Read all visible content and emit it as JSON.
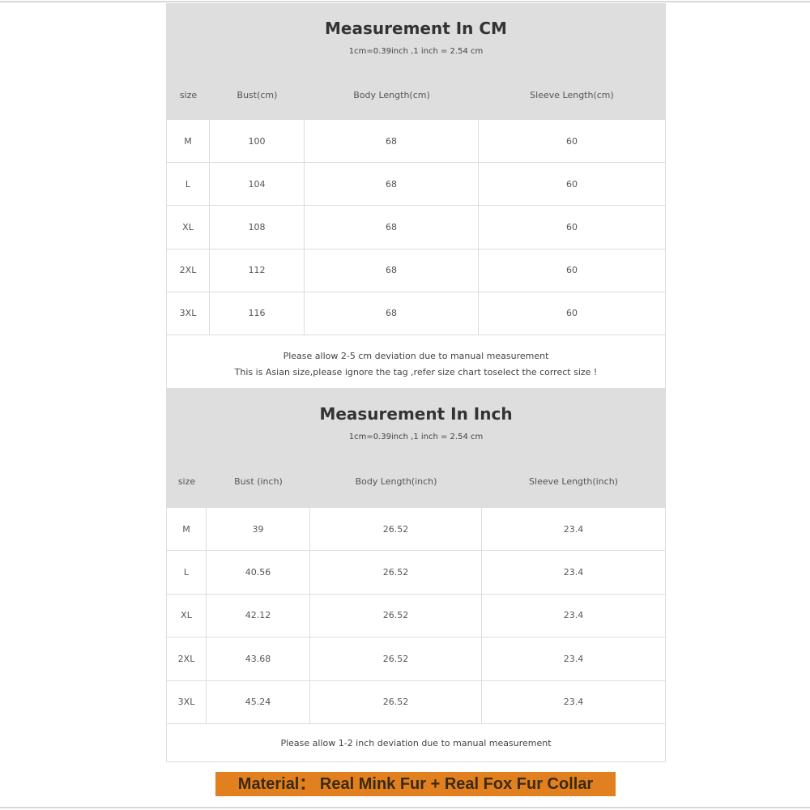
{
  "cm_table": {
    "title": "Measurement In CM",
    "subtitle": "1cm=0.39inch ,1 inch = 2.54 cm",
    "headers": [
      "size",
      "Bust(cm)",
      "Body Length(cm)",
      "Sleeve Length(cm)"
    ],
    "rows": [
      [
        "M",
        "100",
        "68",
        "60"
      ],
      [
        "L",
        "104",
        "68",
        "60"
      ],
      [
        "XL",
        "108",
        "68",
        "60"
      ],
      [
        "2XL",
        "112",
        "68",
        "60"
      ],
      [
        "3XL",
        "116",
        "68",
        "60"
      ]
    ],
    "notes": [
      "Please allow 2-5 cm deviation due to manual measurement",
      "This is Asian size,please ignore the tag ,refer size chart toselect the correct size !"
    ]
  },
  "inch_table": {
    "title": "Measurement In Inch",
    "subtitle": "1cm=0.39inch ,1 inch = 2.54 cm",
    "headers": [
      "size",
      "Bust (inch)",
      "Body Length(inch)",
      "Sleeve Length(inch)"
    ],
    "rows": [
      [
        "M",
        "39",
        "26.52",
        "23.4"
      ],
      [
        "L",
        "40.56",
        "26.52",
        "23.4"
      ],
      [
        "XL",
        "42.12",
        "26.52",
        "23.4"
      ],
      [
        "2XL",
        "43.68",
        "26.52",
        "23.4"
      ],
      [
        "3XL",
        "45.24",
        "26.52",
        "23.4"
      ]
    ],
    "notes": [
      "Please allow 1-2 inch deviation due to manual measurement"
    ]
  },
  "material": {
    "label": "Material：  Real Mink Fur + Real Fox Fur Collar",
    "background_color": "#e2801f"
  }
}
